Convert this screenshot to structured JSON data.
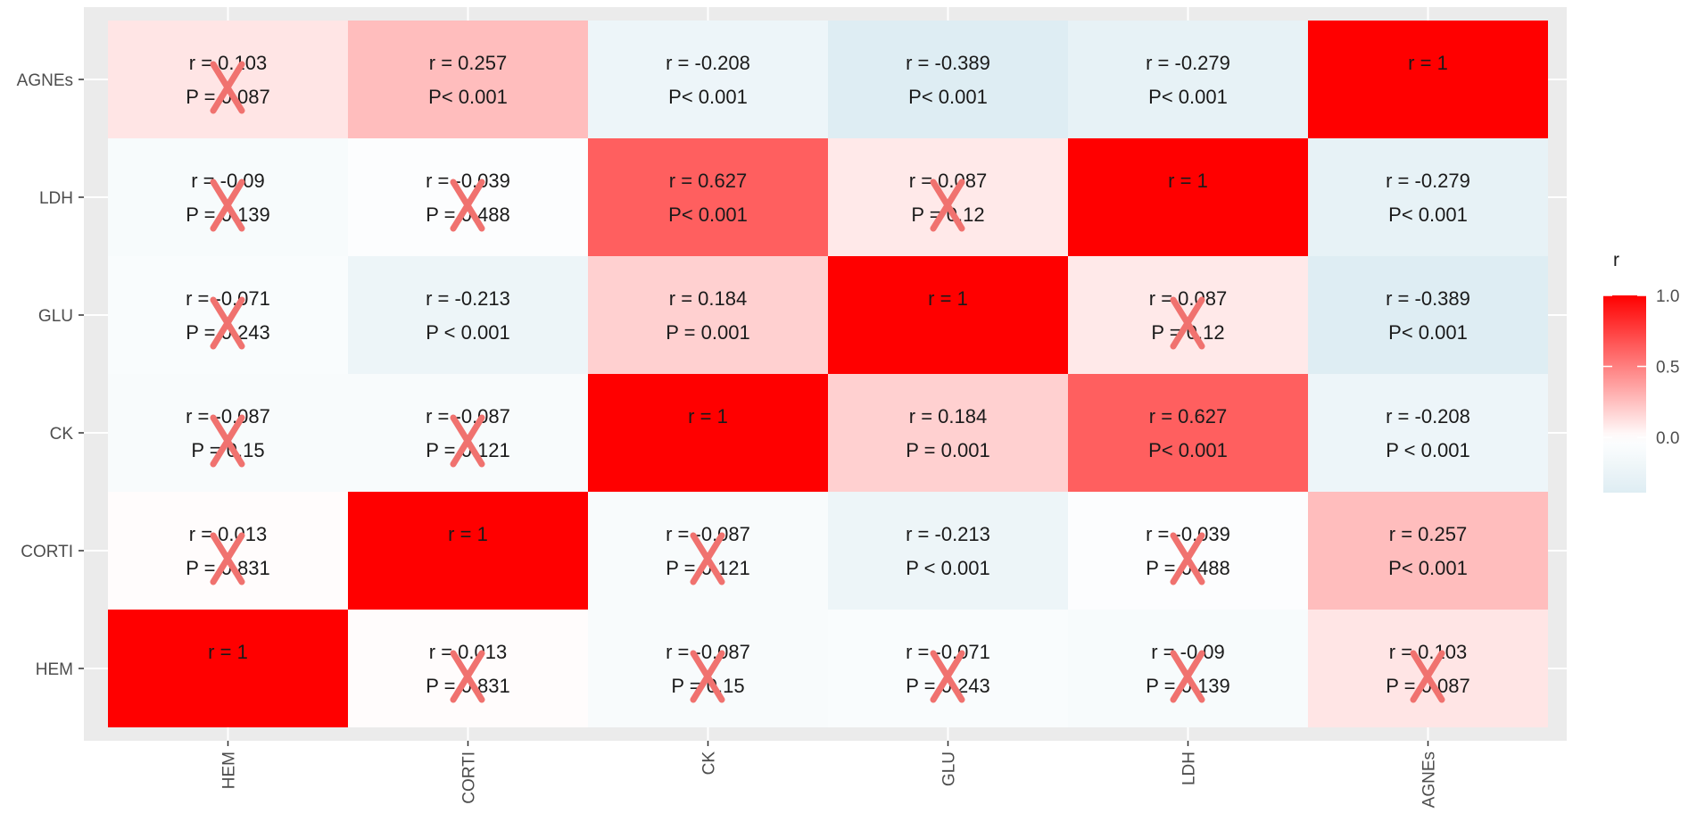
{
  "chart_data": {
    "type": "heatmap",
    "title": "",
    "xlabel": "",
    "ylabel": "",
    "x_categories": [
      "HEM",
      "CORTI",
      "CK",
      "GLU",
      "LDH",
      "AGNEs"
    ],
    "y_categories": [
      "HEM",
      "CORTI",
      "CK",
      "GLU",
      "LDH",
      "AGNEs"
    ],
    "y_order": "bottom-to-top",
    "grid": true,
    "color_scale": {
      "low": "#deedf3",
      "mid": "#ffffff",
      "high": "#ff0000",
      "range": [
        -0.389,
        1
      ]
    },
    "legend": {
      "title": "r",
      "position": "right",
      "ticks": [
        {
          "value": 1.0,
          "label": "1.0"
        },
        {
          "value": 0.5,
          "label": "0.5"
        },
        {
          "value": 0.0,
          "label": "0.0"
        }
      ]
    },
    "cross_color": "#f0726f",
    "cells": [
      {
        "x": "HEM",
        "y": "AGNEs",
        "r": 0.103,
        "r_text": "r = 0.103",
        "p_text": "P = 0.087",
        "crossed": true
      },
      {
        "x": "CORTI",
        "y": "AGNEs",
        "r": 0.257,
        "r_text": "r = 0.257",
        "p_text": "P< 0.001",
        "crossed": false
      },
      {
        "x": "CK",
        "y": "AGNEs",
        "r": -0.208,
        "r_text": "r = -0.208",
        "p_text": "P< 0.001",
        "crossed": false
      },
      {
        "x": "GLU",
        "y": "AGNEs",
        "r": -0.389,
        "r_text": "r = -0.389",
        "p_text": "P< 0.001",
        "crossed": false
      },
      {
        "x": "LDH",
        "y": "AGNEs",
        "r": -0.279,
        "r_text": "r = -0.279",
        "p_text": "P< 0.001",
        "crossed": false
      },
      {
        "x": "AGNEs",
        "y": "AGNEs",
        "r": 1,
        "r_text": "r = 1",
        "p_text": "",
        "crossed": false
      },
      {
        "x": "HEM",
        "y": "LDH",
        "r": -0.09,
        "r_text": "r = -0.09",
        "p_text": "P = 0.139",
        "crossed": true
      },
      {
        "x": "CORTI",
        "y": "LDH",
        "r": -0.039,
        "r_text": "r = -0.039",
        "p_text": "P = 0.488",
        "crossed": true
      },
      {
        "x": "CK",
        "y": "LDH",
        "r": 0.627,
        "r_text": "r = 0.627",
        "p_text": "P< 0.001",
        "crossed": false
      },
      {
        "x": "GLU",
        "y": "LDH",
        "r": 0.087,
        "r_text": "r = 0.087",
        "p_text": "P = 0.12",
        "crossed": true
      },
      {
        "x": "LDH",
        "y": "LDH",
        "r": 1,
        "r_text": "r = 1",
        "p_text": "",
        "crossed": false
      },
      {
        "x": "AGNEs",
        "y": "LDH",
        "r": -0.279,
        "r_text": "r = -0.279",
        "p_text": "P< 0.001",
        "crossed": false
      },
      {
        "x": "HEM",
        "y": "GLU",
        "r": -0.071,
        "r_text": "r = -0.071",
        "p_text": "P = 0.243",
        "crossed": true
      },
      {
        "x": "CORTI",
        "y": "GLU",
        "r": -0.213,
        "r_text": "r = -0.213",
        "p_text": "P < 0.001",
        "crossed": false
      },
      {
        "x": "CK",
        "y": "GLU",
        "r": 0.184,
        "r_text": "r = 0.184",
        "p_text": "P = 0.001",
        "crossed": false
      },
      {
        "x": "GLU",
        "y": "GLU",
        "r": 1,
        "r_text": "r = 1",
        "p_text": "",
        "crossed": false
      },
      {
        "x": "LDH",
        "y": "GLU",
        "r": 0.087,
        "r_text": "r = 0.087",
        "p_text": "P = 0.12",
        "crossed": true
      },
      {
        "x": "AGNEs",
        "y": "GLU",
        "r": -0.389,
        "r_text": "r = -0.389",
        "p_text": "P< 0.001",
        "crossed": false
      },
      {
        "x": "HEM",
        "y": "CK",
        "r": -0.087,
        "r_text": "r = -0.087",
        "p_text": "P = 0.15",
        "crossed": true
      },
      {
        "x": "CORTI",
        "y": "CK",
        "r": -0.087,
        "r_text": "r = -0.087",
        "p_text": "P = 0.121",
        "crossed": true
      },
      {
        "x": "CK",
        "y": "CK",
        "r": 1,
        "r_text": "r = 1",
        "p_text": "",
        "crossed": false
      },
      {
        "x": "GLU",
        "y": "CK",
        "r": 0.184,
        "r_text": "r = 0.184",
        "p_text": "P = 0.001",
        "crossed": false
      },
      {
        "x": "LDH",
        "y": "CK",
        "r": 0.627,
        "r_text": "r = 0.627",
        "p_text": "P< 0.001",
        "crossed": false
      },
      {
        "x": "AGNEs",
        "y": "CK",
        "r": -0.208,
        "r_text": "r = -0.208",
        "p_text": "P < 0.001",
        "crossed": false
      },
      {
        "x": "HEM",
        "y": "CORTI",
        "r": 0.013,
        "r_text": "r = 0.013",
        "p_text": "P = 0.831",
        "crossed": true
      },
      {
        "x": "CORTI",
        "y": "CORTI",
        "r": 1,
        "r_text": "r = 1",
        "p_text": "",
        "crossed": false
      },
      {
        "x": "CK",
        "y": "CORTI",
        "r": -0.087,
        "r_text": "r = -0.087",
        "p_text": "P = 0.121",
        "crossed": true
      },
      {
        "x": "GLU",
        "y": "CORTI",
        "r": -0.213,
        "r_text": "r = -0.213",
        "p_text": "P < 0.001",
        "crossed": false
      },
      {
        "x": "LDH",
        "y": "CORTI",
        "r": -0.039,
        "r_text": "r = -0.039",
        "p_text": "P = 0.488",
        "crossed": true
      },
      {
        "x": "AGNEs",
        "y": "CORTI",
        "r": 0.257,
        "r_text": "r = 0.257",
        "p_text": "P< 0.001",
        "crossed": false
      },
      {
        "x": "HEM",
        "y": "HEM",
        "r": 1,
        "r_text": "r = 1",
        "p_text": "",
        "crossed": false
      },
      {
        "x": "CORTI",
        "y": "HEM",
        "r": 0.013,
        "r_text": "r = 0.013",
        "p_text": "P = 0.831",
        "crossed": true
      },
      {
        "x": "CK",
        "y": "HEM",
        "r": -0.087,
        "r_text": "r = -0.087",
        "p_text": "P = 0.15",
        "crossed": true
      },
      {
        "x": "GLU",
        "y": "HEM",
        "r": -0.071,
        "r_text": "r = -0.071",
        "p_text": "P = 0.243",
        "crossed": true
      },
      {
        "x": "LDH",
        "y": "HEM",
        "r": -0.09,
        "r_text": "r = -0.09",
        "p_text": "P = 0.139",
        "crossed": true
      },
      {
        "x": "AGNEs",
        "y": "HEM",
        "r": 0.103,
        "r_text": "r = 0.103",
        "p_text": "P = 0.087",
        "crossed": true
      }
    ]
  }
}
